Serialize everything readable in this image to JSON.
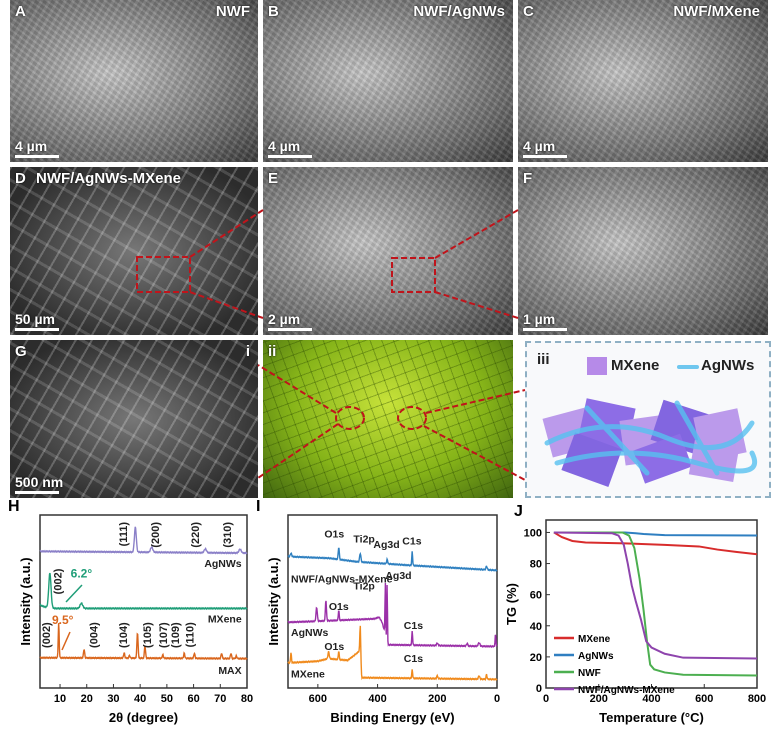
{
  "panels": {
    "A": {
      "letter": "A",
      "title": "NWF",
      "scale": "4 µm"
    },
    "B": {
      "letter": "B",
      "title": "NWF/AgNWs",
      "scale": "4 µm"
    },
    "C": {
      "letter": "C",
      "title": "NWF/MXene",
      "scale": "4 µm"
    },
    "D": {
      "letter": "D",
      "title": "NWF/AgNWs-MXene",
      "scale": "50 µm"
    },
    "E": {
      "letter": "E",
      "scale": "2 µm"
    },
    "F": {
      "letter": "F",
      "scale": "1 µm"
    },
    "G": {
      "letter": "G",
      "scale": "500 nm",
      "sub": "i"
    },
    "ii": {
      "letter": "ii"
    },
    "iii": {
      "letter": "iii",
      "legend_mxene": "MXene",
      "legend_agnws": "AgNWs"
    }
  },
  "chart_data": [
    {
      "id": "H",
      "letter": "H",
      "type": "line",
      "xlabel": "2θ (degree)",
      "ylabel": "Intensity (a.u.)",
      "xlim": [
        2.5,
        80
      ],
      "ylim": [
        0,
        100
      ],
      "xticks": [
        10,
        20,
        30,
        40,
        50,
        60,
        70,
        80
      ],
      "series": [
        {
          "name": "AgNWs",
          "color": "#8b80c8",
          "baseline": [
            [
              2.5,
              79
            ],
            [
              80,
              78
            ]
          ],
          "peaks": [
            [
              38.2,
              14.5,
              0.5
            ],
            [
              44.3,
              3,
              0.6
            ],
            [
              64.4,
              2.2,
              0.6
            ],
            [
              77.4,
              2.2,
              0.6
            ]
          ]
        },
        {
          "name": "MXene",
          "color": "#1f9e78",
          "baseline": [
            [
              2.5,
              48
            ],
            [
              4,
              47
            ],
            [
              8,
              46
            ],
            [
              80,
              46
            ]
          ],
          "peaks": [
            [
              6.2,
              20,
              0.6
            ],
            [
              18,
              3,
              0.7
            ]
          ]
        },
        {
          "name": "MAX",
          "color": "#d9661d",
          "baseline": [
            [
              2.5,
              17.5
            ],
            [
              80,
              17
            ]
          ],
          "peaks": [
            [
              9.5,
              20,
              0.25
            ],
            [
              19,
              5,
              0.3
            ],
            [
              34,
              3,
              0.3
            ],
            [
              36,
              1.5,
              0.3
            ],
            [
              39,
              15,
              0.3
            ],
            [
              41.8,
              7,
              0.3
            ],
            [
              48.5,
              2,
              0.3
            ],
            [
              56.5,
              3,
              0.3
            ],
            [
              60.3,
              3,
              0.3
            ],
            [
              70.5,
              3,
              0.3
            ],
            [
              74,
              3,
              0.3
            ],
            [
              76,
              1.5,
              0.3
            ]
          ]
        }
      ],
      "annotations": [
        {
          "text": "(111)",
          "x": 35,
          "y": 96,
          "rot": true
        },
        {
          "text": "(200)",
          "x": 47,
          "y": 96,
          "rot": true
        },
        {
          "text": "(220)",
          "x": 62,
          "y": 96,
          "rot": true
        },
        {
          "text": "(310)",
          "x": 74,
          "y": 96,
          "rot": true
        },
        {
          "text": "(002)",
          "x": 10.5,
          "y": 69,
          "rot": true
        },
        {
          "text": "(002)",
          "x": 6.3,
          "y": 38,
          "rot": true
        },
        {
          "text": "(004)",
          "x": 24,
          "y": 38,
          "rot": true
        },
        {
          "text": "(104)",
          "x": 35,
          "y": 38,
          "rot": true
        },
        {
          "text": "(105)",
          "x": 44,
          "y": 38,
          "rot": true
        },
        {
          "text": "(107)",
          "x": 50,
          "y": 38,
          "rot": true
        },
        {
          "text": "(109)",
          "x": 54.5,
          "y": 38,
          "rot": true
        },
        {
          "text": "(110)",
          "x": 60,
          "y": 38,
          "rot": true
        },
        {
          "text": "6.2°",
          "x": 18,
          "y": 64,
          "color": "#1f9e78"
        },
        {
          "text": "9.5°",
          "x": 11,
          "y": 37,
          "color": "#d9661d"
        },
        {
          "text": "AgNWs",
          "x": 78,
          "y": 70,
          "anchor": "end"
        },
        {
          "text": "MXene",
          "x": 78,
          "y": 38,
          "anchor": "end"
        },
        {
          "text": "MAX",
          "x": 78,
          "y": 8,
          "anchor": "end"
        }
      ]
    },
    {
      "id": "I",
      "letter": "I",
      "type": "line",
      "xlabel": "Binding Energy (eV)",
      "ylabel": "Intensity (a.u.)",
      "xlim": [
        700,
        0
      ],
      "ylim": [
        0,
        100
      ],
      "xticks": [
        600,
        400,
        200,
        0
      ],
      "series": [
        {
          "name": "NWF/AgNWs-MXene",
          "color": "#2f80c0",
          "baseline": [
            [
              700,
              76
            ],
            [
              560,
              75
            ],
            [
              470,
              73
            ],
            [
              300,
              71
            ],
            [
              0,
              68
            ]
          ],
          "peaks": [
            [
              690,
              2,
              3
            ],
            [
              530,
              7,
              2.5
            ],
            [
              458,
              5,
              3
            ],
            [
              368,
              2.5,
              2.5
            ],
            [
              284,
              8,
              2
            ],
            [
              35,
              2,
              3
            ]
          ]
        },
        {
          "name": "AgNWs",
          "color": "#9b30a8",
          "baseline": [
            [
              700,
              38
            ],
            [
              620,
              38.5
            ],
            [
              410,
              40
            ],
            [
              395,
              41
            ],
            [
              385,
              38
            ],
            [
              372,
              30
            ],
            [
              366,
              25
            ],
            [
              0,
              24
            ]
          ],
          "peaks": [
            [
              604,
              8,
              3
            ],
            [
              573,
              12,
              2.5
            ],
            [
              530,
              6,
              2
            ],
            [
              374,
              30,
              1.6
            ],
            [
              368,
              33,
              1.6
            ],
            [
              284,
              8,
              2
            ],
            [
              200,
              1.5,
              3
            ],
            [
              100,
              1.5,
              3
            ],
            [
              60,
              2,
              4
            ],
            [
              5,
              7,
              2
            ]
          ]
        },
        {
          "name": "MXene",
          "color": "#f08a1c",
          "baseline": [
            [
              700,
              14.5
            ],
            [
              600,
              15.5
            ],
            [
              565,
              17
            ],
            [
              500,
              16
            ],
            [
              470,
              20
            ],
            [
              458,
              22
            ],
            [
              453,
              6
            ],
            [
              0,
              5
            ]
          ],
          "peaks": [
            [
              690,
              6,
              2
            ],
            [
              564,
              4,
              3
            ],
            [
              530,
              5,
              2
            ],
            [
              458,
              15,
              2
            ],
            [
              284,
              5,
              2
            ],
            [
              200,
              2,
              2
            ],
            [
              60,
              2,
              3
            ],
            [
              35,
              3,
              2
            ]
          ]
        }
      ],
      "annotations": [
        {
          "text": "O1s",
          "x": 545,
          "y": 87
        },
        {
          "text": "Ti2p",
          "x": 445,
          "y": 84
        },
        {
          "text": "Ag3d",
          "x": 370,
          "y": 81
        },
        {
          "text": "C1s",
          "x": 285,
          "y": 83
        },
        {
          "text": "NWF/AgNWs-MXene",
          "x": 690,
          "y": 61,
          "anchor": "start"
        },
        {
          "text": "Ag3d",
          "x": 330,
          "y": 63
        },
        {
          "text": "O1s",
          "x": 530,
          "y": 45
        },
        {
          "text": "C1s",
          "x": 280,
          "y": 34
        },
        {
          "text": "AgNWs",
          "x": 690,
          "y": 30,
          "anchor": "start"
        },
        {
          "text": "Ti2p",
          "x": 445,
          "y": 57
        },
        {
          "text": "O1s",
          "x": 545,
          "y": 22
        },
        {
          "text": "C1s",
          "x": 280,
          "y": 15
        },
        {
          "text": "MXene",
          "x": 690,
          "y": 6,
          "anchor": "start"
        }
      ]
    },
    {
      "id": "J",
      "letter": "J",
      "type": "line",
      "xlabel": "Temperature (°C)",
      "ylabel": "TG (%)",
      "xlim": [
        0,
        800
      ],
      "ylim": [
        0,
        108
      ],
      "xticks": [
        0,
        200,
        400,
        600,
        800
      ],
      "yticks": [
        0,
        20,
        40,
        60,
        80,
        100
      ],
      "series": [
        {
          "name": "MXene",
          "color": "#d82c2c",
          "points": [
            [
              30,
              100
            ],
            [
              60,
              97
            ],
            [
              100,
              94.5
            ],
            [
              150,
              93.5
            ],
            [
              300,
              93
            ],
            [
              450,
              92
            ],
            [
              580,
              91
            ],
            [
              650,
              89
            ],
            [
              720,
              87.5
            ],
            [
              800,
              86
            ]
          ]
        },
        {
          "name": "AgNWs",
          "color": "#2f7fc1",
          "points": [
            [
              30,
              100
            ],
            [
              300,
              100
            ],
            [
              340,
              99.5
            ],
            [
              370,
              99
            ],
            [
              450,
              98.3
            ],
            [
              800,
              98
            ]
          ]
        },
        {
          "name": "NWF",
          "color": "#4caf50",
          "points": [
            [
              30,
              100
            ],
            [
              290,
              100
            ],
            [
              315,
              98
            ],
            [
              335,
              90
            ],
            [
              355,
              70
            ],
            [
              370,
              50
            ],
            [
              383,
              30
            ],
            [
              395,
              15
            ],
            [
              410,
              12
            ],
            [
              450,
              10
            ],
            [
              520,
              8.5
            ],
            [
              800,
              8
            ]
          ]
        },
        {
          "name": "NWF/AgNWs-MXene",
          "color": "#8e44ad",
          "points": [
            [
              30,
              100
            ],
            [
              250,
              99.5
            ],
            [
              275,
              98
            ],
            [
              295,
              92
            ],
            [
              310,
              80
            ],
            [
              325,
              66
            ],
            [
              340,
              56
            ],
            [
              360,
              44
            ],
            [
              380,
              30
            ],
            [
              400,
              26
            ],
            [
              450,
              22
            ],
            [
              520,
              19.5
            ],
            [
              800,
              19
            ]
          ]
        }
      ]
    }
  ]
}
